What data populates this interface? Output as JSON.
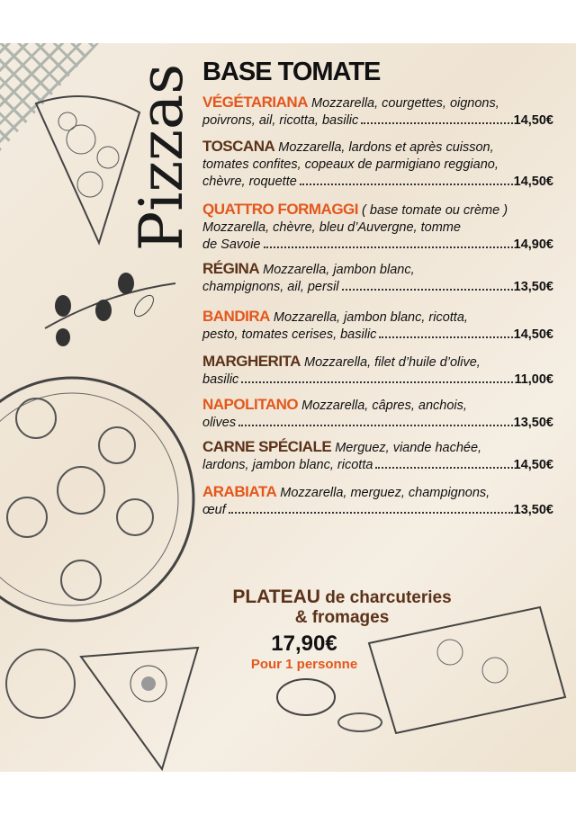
{
  "title": "Pizzas",
  "section": "BASE TOMATE",
  "items": [
    {
      "name": "VÉGÉTARIANA",
      "color": "orange",
      "lines": [
        "Mozzarella, courgettes, oignons,"
      ],
      "last": "poivrons, ail, ricotta, basilic",
      "price": "14,50€"
    },
    {
      "name": "TOSCANA",
      "color": "brown",
      "lines": [
        "Mozzarella, lardons et après cuisson,",
        "tomates confites, copeaux de parmigiano reggiano,"
      ],
      "last": "chèvre, roquette",
      "price": "14,50€"
    },
    {
      "name": "QUATTRO FORMAGGI",
      "color": "orange",
      "lines": [
        "( base tomate ou crème )",
        "Mozzarella, chèvre, bleu d’Auvergne, tomme"
      ],
      "last": "de Savoie",
      "price": "14,90€"
    },
    {
      "name": "RÉGINA",
      "color": "brown",
      "lines": [
        "Mozzarella, jambon blanc,"
      ],
      "last": "champignons, ail, persil",
      "price": "13,50€"
    },
    {
      "name": "BANDIRA",
      "color": "orange",
      "lines": [
        "Mozzarella, jambon blanc, ricotta,"
      ],
      "last": "pesto, tomates cerises, basilic",
      "price": "14,50€"
    },
    {
      "name": "MARGHERITA",
      "color": "brown",
      "lines": [
        "Mozzarella, filet d’huile d’olive,"
      ],
      "last": "basilic",
      "price": "11,00€"
    },
    {
      "name": "NAPOLITANO",
      "color": "orange",
      "lines": [
        "Mozzarella, câpres, anchois,"
      ],
      "last": "olives",
      "price": "13,50€"
    },
    {
      "name": "CARNE SPÉCIALE",
      "color": "brown",
      "lines": [
        "Merguez, viande hachée,"
      ],
      "last": "lardons, jambon blanc, ricotta",
      "price": "14,50€"
    },
    {
      "name": "ARABIATA",
      "color": "orange",
      "lines": [
        "Mozzarella, merguez, champignons,"
      ],
      "last": "œuf",
      "price": "13,50€"
    }
  ],
  "plateau": {
    "name": "PLATEAU",
    "line1": "de charcuteries",
    "line2": "& fromages",
    "price": "17,90€",
    "note": "Pour 1 personne"
  },
  "colors": {
    "orange": "#e3571c",
    "brown": "#5b3219"
  }
}
